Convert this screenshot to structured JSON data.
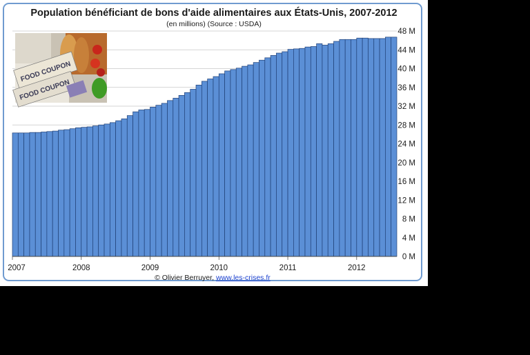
{
  "chart_data": {
    "type": "bar",
    "title": "Population bénéficiant de bons d'aide alimentaires aux États-Unis, 2007-2012",
    "subtitle": "(en millions) (Source : USDA)",
    "xlabel": "",
    "ylabel": "",
    "ylim": [
      0,
      48
    ],
    "yticks": [
      "0 M",
      "4 M",
      "8 M",
      "12 M",
      "16 M",
      "20 M",
      "24 M",
      "28 M",
      "32 M",
      "36 M",
      "40 M",
      "44 M",
      "48 M"
    ],
    "xticks": [
      "2007",
      "2008",
      "2009",
      "2010",
      "2011",
      "2012"
    ],
    "grid": "horizontal",
    "legend": "none",
    "bar_color": "#5b8fd6",
    "bar_edge_color": "#1f3f75",
    "frame_color": "#6f9bd0",
    "categories": [
      "2007-01",
      "2007-02",
      "2007-03",
      "2007-04",
      "2007-05",
      "2007-06",
      "2007-07",
      "2007-08",
      "2007-09",
      "2007-10",
      "2007-11",
      "2007-12",
      "2008-01",
      "2008-02",
      "2008-03",
      "2008-04",
      "2008-05",
      "2008-06",
      "2008-07",
      "2008-08",
      "2008-09",
      "2008-10",
      "2008-11",
      "2008-12",
      "2009-01",
      "2009-02",
      "2009-03",
      "2009-04",
      "2009-05",
      "2009-06",
      "2009-07",
      "2009-08",
      "2009-09",
      "2009-10",
      "2009-11",
      "2009-12",
      "2010-01",
      "2010-02",
      "2010-03",
      "2010-04",
      "2010-05",
      "2010-06",
      "2010-07",
      "2010-08",
      "2010-09",
      "2010-10",
      "2010-11",
      "2010-12",
      "2011-01",
      "2011-02",
      "2011-03",
      "2011-04",
      "2011-05",
      "2011-06",
      "2011-07",
      "2011-08",
      "2011-09",
      "2011-10",
      "2011-11",
      "2011-12",
      "2012-01",
      "2012-02",
      "2012-03",
      "2012-04",
      "2012-05",
      "2012-06",
      "2012-07"
    ],
    "values": [
      26.3,
      26.3,
      26.3,
      26.4,
      26.4,
      26.5,
      26.6,
      26.7,
      26.9,
      27.0,
      27.2,
      27.4,
      27.5,
      27.6,
      27.8,
      28.0,
      28.2,
      28.5,
      28.9,
      29.3,
      30.0,
      30.8,
      31.2,
      31.3,
      31.8,
      32.2,
      32.6,
      33.2,
      33.7,
      34.3,
      34.9,
      35.6,
      36.5,
      37.3,
      37.8,
      38.3,
      38.9,
      39.5,
      39.8,
      40.1,
      40.5,
      40.8,
      41.3,
      41.8,
      42.3,
      42.8,
      43.3,
      43.6,
      44.1,
      44.2,
      44.3,
      44.6,
      44.7,
      45.3,
      45.0,
      45.3,
      45.8,
      46.2,
      46.2,
      46.2,
      46.5,
      46.5,
      46.4,
      46.4,
      46.4,
      46.7,
      46.7
    ]
  },
  "credit": {
    "author": "© Olivier Berruyer,",
    "link": "www.les-crises.fr"
  },
  "photo": {
    "label_line1": "FOOD COUPON",
    "label_line2": "FOOD COUPON"
  }
}
